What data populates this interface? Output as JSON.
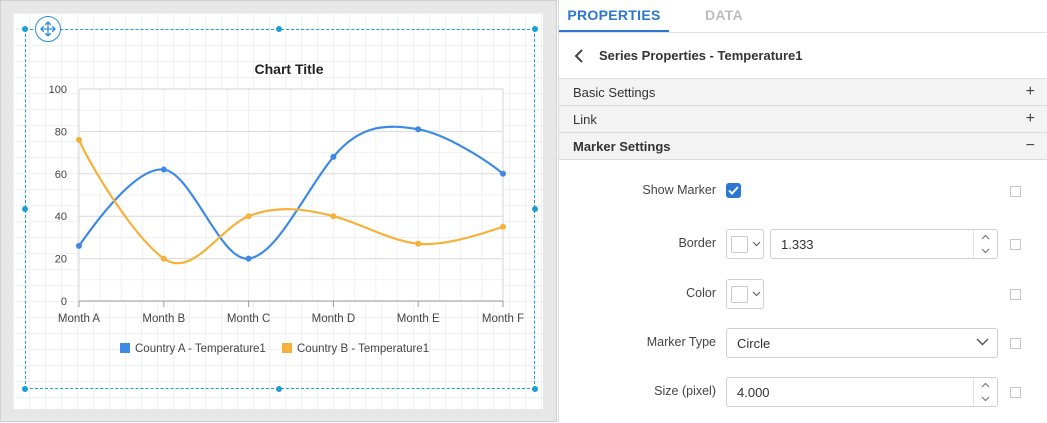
{
  "chart": {
    "move_icon": "move-arrows-icon"
  },
  "chart_data": {
    "type": "line",
    "smooth": true,
    "title": "Chart Title",
    "categories": [
      "Month A",
      "Month B",
      "Month C",
      "Month D",
      "Month E",
      "Month F"
    ],
    "y_ticks": [
      "0",
      "20",
      "40",
      "60",
      "80",
      "100"
    ],
    "ylim": [
      0,
      100
    ],
    "grid": true,
    "legend_position": "bottom",
    "series": [
      {
        "name": "Country A - Temperature1",
        "color": "#3c8ae6",
        "values": [
          26,
          62,
          20,
          68,
          81,
          60
        ]
      },
      {
        "name": "Country B - Temperature1",
        "color": "#f6b13a",
        "values": [
          76,
          20,
          40,
          40,
          27,
          35
        ]
      }
    ]
  },
  "panel": {
    "tabs": [
      {
        "label": "PROPERTIES",
        "active": true
      },
      {
        "label": "DATA",
        "active": false
      }
    ],
    "back_icon": "chevron-left-icon",
    "header_title": "Series Properties - Temperature1",
    "sections": {
      "basic": {
        "label": "Basic Settings",
        "sign": "+"
      },
      "link": {
        "label": "Link",
        "sign": "+"
      },
      "marker": {
        "label": "Marker Settings",
        "sign": "−"
      }
    },
    "show_marker": {
      "label": "Show Marker",
      "checked": true
    },
    "border": {
      "label": "Border",
      "value": "1.333"
    },
    "color": {
      "label": "Color"
    },
    "marker_type": {
      "label": "Marker Type",
      "value": "Circle"
    },
    "size": {
      "label": "Size (pixel)",
      "value": "4.000"
    }
  }
}
